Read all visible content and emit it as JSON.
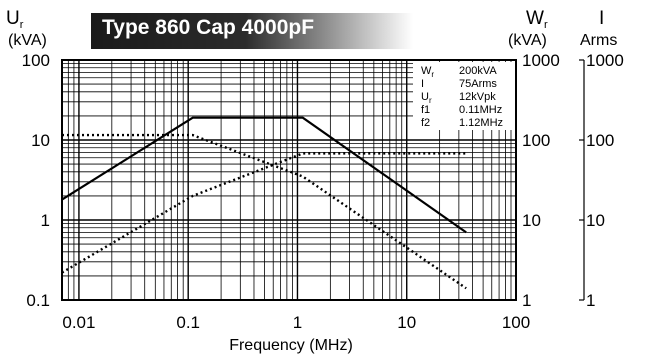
{
  "chart_data": {
    "type": "line",
    "title": "Type 860 Cap 4000pF",
    "xlabel": "Frequency (MHz)",
    "xscale": "log",
    "xlim": [
      0.007,
      100
    ],
    "x_ticks": [
      "0.01",
      "0.1",
      "1",
      "10",
      "100"
    ],
    "grid": true,
    "axes": {
      "left": {
        "label_main": "U",
        "label_sub": "r",
        "unit": "(kVA)",
        "scale": "log",
        "ylim": [
          0.1,
          100
        ],
        "ticks": [
          "100",
          "10",
          "1",
          "0.1"
        ]
      },
      "right1": {
        "label_main": "W",
        "label_sub": "r",
        "unit": "(kVA)",
        "scale": "log",
        "ylim": [
          1,
          1000
        ],
        "ticks": [
          "1000",
          "100",
          "10",
          "1"
        ]
      },
      "right2": {
        "label_main": "I",
        "unit": "Arms",
        "scale": "log",
        "ylim": [
          1,
          1000
        ],
        "ticks": [
          "1000",
          "100",
          "10",
          "1"
        ]
      }
    },
    "series": [
      {
        "style": "solid",
        "axis": "left",
        "x": [
          0.007,
          0.11,
          1.12,
          35
        ],
        "y": [
          1.8,
          19.0,
          19.0,
          0.7
        ]
      },
      {
        "style": "dotted",
        "axis": "left",
        "x": [
          0.007,
          0.11,
          1.12,
          35
        ],
        "y": [
          11.5,
          11.5,
          3.5,
          0.14
        ]
      },
      {
        "style": "dotted",
        "axis": "right1",
        "x": [
          0.007,
          0.11,
          1.12,
          35
        ],
        "y": [
          2.2,
          20.0,
          68.0,
          68.0
        ]
      }
    ],
    "legend": {
      "placement": "top-right",
      "entries": [
        {
          "label": "W",
          "label_sub": "r",
          "value": "200kVA"
        },
        {
          "label": "I",
          "label_sub": "",
          "value": "75Arms"
        },
        {
          "label": "U",
          "label_sub": "r",
          "value": "12kVpk"
        },
        {
          "label": "f1",
          "label_sub": "",
          "value": "0.11MHz"
        },
        {
          "label": "f2",
          "label_sub": "",
          "value": "1.12MHz"
        }
      ]
    }
  }
}
